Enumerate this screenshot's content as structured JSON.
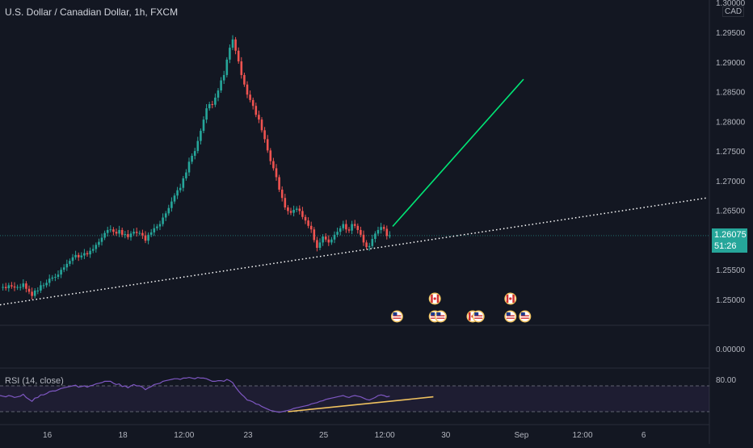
{
  "header": {
    "symbol_title": "U.S. Dollar / Canadian Dollar, 1h, FXCM",
    "currency": "CAD"
  },
  "rsi": {
    "label": "RSI (14, close)",
    "upper_band": 80.0
  },
  "price_panel": {
    "last_price": "1.26075",
    "countdown": "51:26",
    "zero_label": "0.00000"
  },
  "colors": {
    "background": "#131722",
    "up": "#26a69a",
    "down": "#ef5350",
    "trend_green": "#00e676",
    "trend_yellow": "#f0c25f",
    "rsi_line": "#7e57c2",
    "dotted": "#ffffff"
  },
  "chart_data": [
    {
      "type": "candlestick",
      "y_axis_ticks": [
        "1.30000",
        "1.29500",
        "1.29000",
        "1.28500",
        "1.28000",
        "1.27500",
        "1.27000",
        "1.26500",
        "1.26000",
        "1.25500",
        "1.25000"
      ],
      "ylim": [
        1.2468,
        1.3003
      ],
      "x_ticks": [
        "16",
        "18",
        "12:00",
        "23",
        "25",
        "12:00",
        "30",
        "Sep",
        "12:00",
        "6"
      ],
      "close_series": [
        1.2521,
        1.2521,
        1.2519,
        1.2524,
        1.2522,
        1.252,
        1.2521,
        1.2521,
        1.2527,
        1.2518,
        1.2513,
        1.2506,
        1.2515,
        1.2515,
        1.2524,
        1.2524,
        1.2528,
        1.2535,
        1.2537,
        1.2538,
        1.2542,
        1.255,
        1.2554,
        1.256,
        1.2565,
        1.2571,
        1.2575,
        1.2571,
        1.2574,
        1.2578,
        1.2576,
        1.2582,
        1.2585,
        1.2592,
        1.2597,
        1.2604,
        1.2612,
        1.2617,
        1.2618,
        1.2614,
        1.2611,
        1.2617,
        1.2609,
        1.261,
        1.2605,
        1.2611,
        1.2614,
        1.2612,
        1.2612,
        1.2608,
        1.2599,
        1.2609,
        1.2613,
        1.262,
        1.2623,
        1.2627,
        1.2638,
        1.2645,
        1.2654,
        1.2665,
        1.2675,
        1.2684,
        1.2688,
        1.2704,
        1.2714,
        1.2732,
        1.2742,
        1.275,
        1.2767,
        1.2784,
        1.2803,
        1.2822,
        1.2829,
        1.2828,
        1.284,
        1.2852,
        1.2869,
        1.2878,
        1.2904,
        1.2924,
        1.2938,
        1.2919,
        1.2901,
        1.2878,
        1.2862,
        1.2845,
        1.2836,
        1.2826,
        1.2811,
        1.2803,
        1.2785,
        1.277,
        1.2751,
        1.2733,
        1.2721,
        1.2706,
        1.2685,
        1.2671,
        1.2655,
        1.2649,
        1.2646,
        1.2651,
        1.2653,
        1.2649,
        1.2639,
        1.2633,
        1.2624,
        1.2618,
        1.26,
        1.2587,
        1.2596,
        1.2606,
        1.2601,
        1.2596,
        1.2601,
        1.2609,
        1.2614,
        1.262,
        1.2627,
        1.2618,
        1.2616,
        1.2627,
        1.2624,
        1.2617,
        1.2609,
        1.2596,
        1.2588,
        1.259,
        1.2602,
        1.2611,
        1.2617,
        1.2622,
        1.2619,
        1.2607,
        1.2608
      ],
      "last_price": 1.26075,
      "annotations": [
        {
          "type": "dotted_trendline",
          "from": {
            "x_index": 0,
            "y": 1.2491
          },
          "to": {
            "x_index": 243,
            "y": 1.2671
          }
        },
        {
          "type": "dotted_trendline",
          "from": {
            "x_index": 0,
            "y": 1.3027
          },
          "to": {
            "x_index": 18,
            "y": 1.3049
          }
        },
        {
          "type": "projection_line",
          "from": {
            "x_index": 135,
            "y": 1.2623
          },
          "to": {
            "x_index": 180,
            "y": 1.2871
          }
        }
      ],
      "event_markers": [
        {
          "x_index": 134,
          "row": "lower",
          "flag": "us"
        },
        {
          "x_index": 147,
          "row": "lower",
          "flag": "us"
        },
        {
          "x_index": 149,
          "row": "lower",
          "flag": "us"
        },
        {
          "x_index": 147,
          "row": "upper",
          "flag": "ca"
        },
        {
          "x_index": 160,
          "row": "lower",
          "flag": "ca"
        },
        {
          "x_index": 162,
          "row": "lower",
          "flag": "us"
        },
        {
          "x_index": 173,
          "row": "upper",
          "flag": "ca"
        },
        {
          "x_index": 173,
          "row": "lower",
          "flag": "us"
        },
        {
          "x_index": 178,
          "row": "lower",
          "flag": "us"
        }
      ]
    },
    {
      "type": "line",
      "name": "RSI (14, close)",
      "ylim": [
        20,
        85
      ],
      "y_ticks": [
        "80.00"
      ],
      "bands": [
        70,
        30
      ],
      "values": [
        55,
        54,
        53,
        55,
        54,
        52,
        53,
        54,
        57,
        52,
        49,
        46,
        51,
        52,
        56,
        56,
        58,
        61,
        62,
        62,
        64,
        66,
        67,
        68,
        69,
        70,
        71,
        68,
        69,
        70,
        68,
        70,
        71,
        73,
        74,
        75,
        77,
        77,
        77,
        74,
        72,
        73,
        69,
        70,
        67,
        70,
        72,
        70,
        70,
        68,
        64,
        67,
        69,
        72,
        73,
        74,
        77,
        78,
        79,
        80,
        81,
        81,
        80,
        82,
        82,
        83,
        82,
        81,
        83,
        82,
        82,
        81,
        79,
        77,
        77,
        78,
        78,
        77,
        80,
        78,
        75,
        68,
        62,
        57,
        53,
        48,
        47,
        45,
        42,
        41,
        38,
        36,
        34,
        32,
        31,
        30,
        29,
        30,
        31,
        32,
        33,
        35,
        36,
        37,
        38,
        39,
        40,
        42,
        43,
        44,
        46,
        47,
        49,
        50,
        51,
        52,
        53,
        54,
        55,
        53,
        52,
        54,
        55,
        54,
        53,
        51,
        49,
        48,
        50,
        52,
        55,
        56,
        55,
        53,
        54
      ],
      "trendline": {
        "from": {
          "x_index": 99,
          "y": 30
        },
        "to": {
          "x_index": 149,
          "y": 53
        }
      }
    }
  ]
}
